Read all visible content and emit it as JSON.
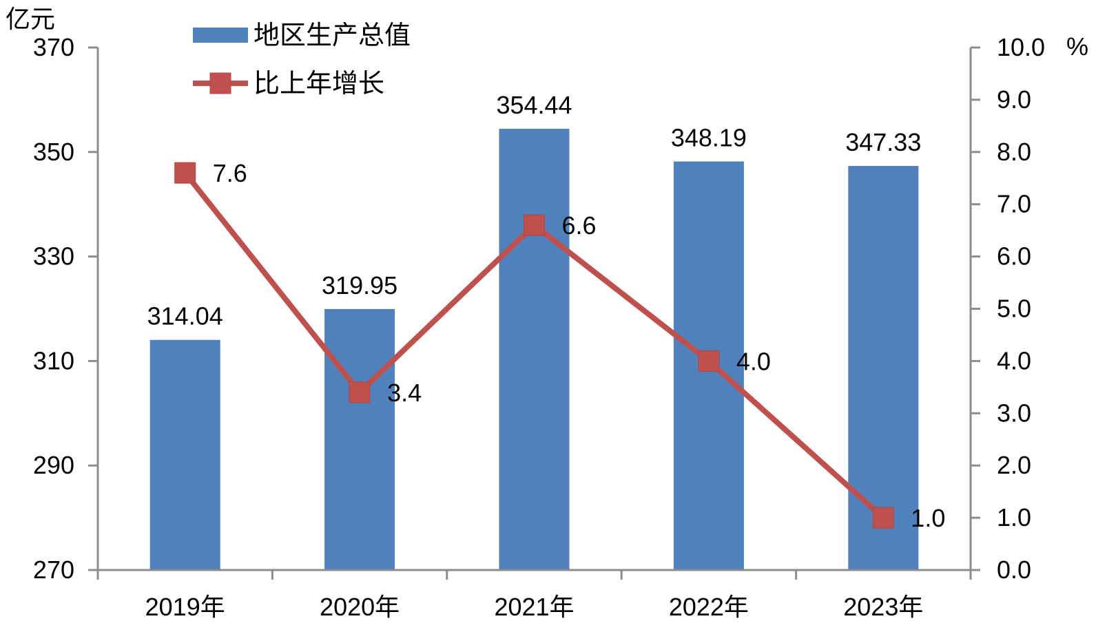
{
  "chart_data": {
    "type": "bar+line",
    "categories": [
      "2019年",
      "2020年",
      "2021年",
      "2022年",
      "2023年"
    ],
    "series": [
      {
        "name": "地区生产总值",
        "type": "bar",
        "axis": "left",
        "color": "#4f81bd",
        "values": [
          314.04,
          319.95,
          354.44,
          348.19,
          347.33
        ],
        "labels": [
          "314.04",
          "319.95",
          "354.44",
          "348.19",
          "347.33"
        ]
      },
      {
        "name": "比上年增长",
        "type": "line",
        "axis": "right",
        "color": "#c0504d",
        "marker": "square",
        "values": [
          7.6,
          3.4,
          6.6,
          4.0,
          1.0
        ],
        "labels": [
          "7.6",
          "3.4",
          "6.6",
          "4.0",
          "1.0"
        ]
      }
    ],
    "y_left": {
      "unit": "亿元",
      "range": [
        270,
        370
      ],
      "ticks": [
        "270",
        "290",
        "310",
        "330",
        "350",
        "370"
      ]
    },
    "y_right": {
      "unit": "%",
      "range": [
        0,
        10
      ],
      "ticks": [
        "0.0",
        "1.0",
        "2.0",
        "3.0",
        "4.0",
        "5.0",
        "6.0",
        "7.0",
        "8.0",
        "9.0",
        "10.0"
      ]
    },
    "legend": {
      "position": "top-left",
      "items": [
        "地区生产总值",
        "比上年增长"
      ]
    },
    "grid": false
  }
}
